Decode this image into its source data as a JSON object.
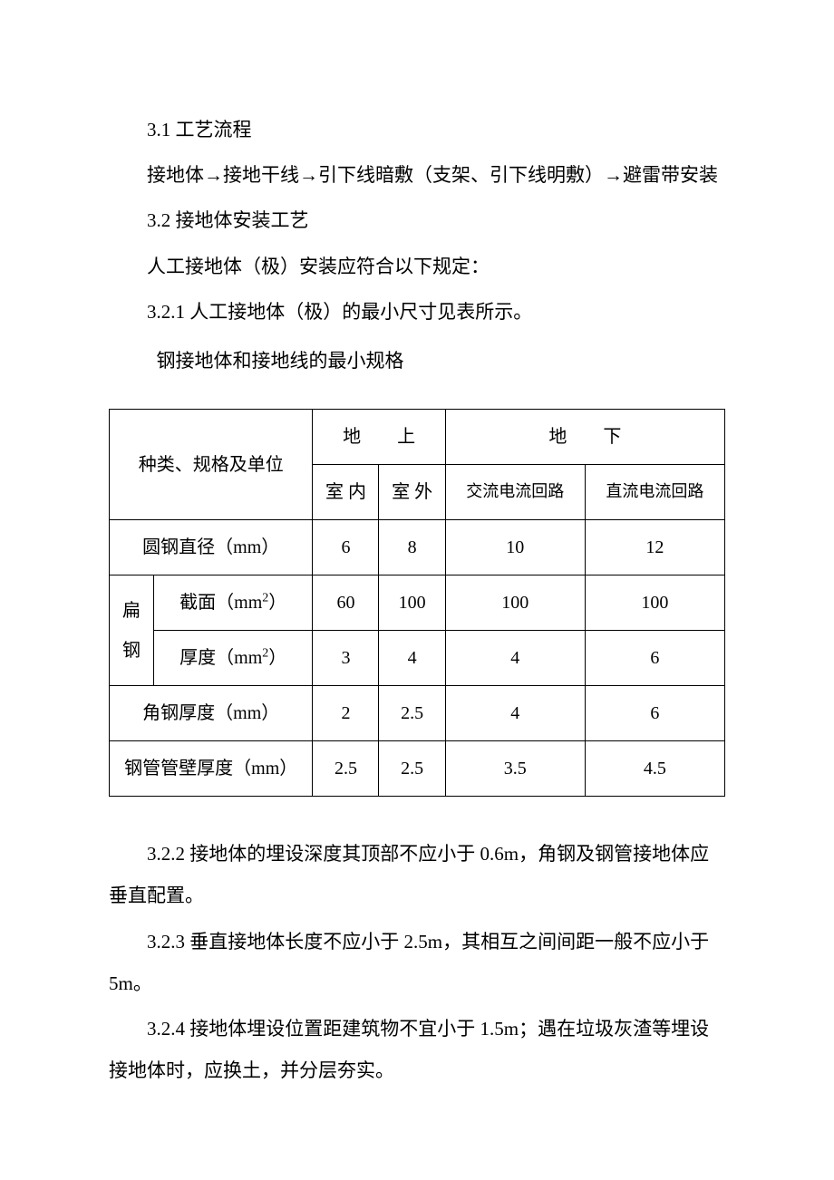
{
  "p1": "3.1 工艺流程",
  "p2": "接地体→接地干线→引下线暗敷（支架、引下线明敷）→避雷带安装",
  "p3": "3.2 接地体安装工艺",
  "p4": "人工接地体（极）安装应符合以下规定：",
  "p5": "3.2.1 人工接地体（极）的最小尺寸见表所示。",
  "p6": "钢接地体和接地线的最小规格",
  "table": {
    "header": {
      "category": "种类、规格及单位",
      "above_ground": "地　　上",
      "below_ground": "地　　下",
      "indoor": "室 内",
      "outdoor": "室 外",
      "ac_loop": "交流电流回路",
      "dc_loop": "直流电流回路"
    },
    "rows": {
      "r1": {
        "label": "圆钢直径（mm）",
        "v1": "6",
        "v2": "8",
        "v3": "10",
        "v4": "12"
      },
      "r2_group": "扁钢",
      "r2a": {
        "label_html": "截面（mm<sup>2</sup>）",
        "v1": "60",
        "v2": "100",
        "v3": "100",
        "v4": "100"
      },
      "r2b": {
        "label_html": "厚度（mm<sup>2</sup>）",
        "v1": "3",
        "v2": "4",
        "v3": "4",
        "v4": "6"
      },
      "r3": {
        "label": "角钢厚度（mm）",
        "v1": "2",
        "v2": "2.5",
        "v3": "4",
        "v4": "6"
      },
      "r4": {
        "label": "钢管管壁厚度（mm）",
        "v1": "2.5",
        "v2": "2.5",
        "v3": "3.5",
        "v4": "4.5"
      }
    }
  },
  "p7": "3.2.2 接地体的埋设深度其顶部不应小于 0.6m，角钢及钢管接地体应垂直配置。",
  "p8": "3.2.3 垂直接地体长度不应小于 2.5m，其相互之间间距一般不应小于 5m。",
  "p9": "3.2.4 接地体埋设位置距建筑物不宜小于 1.5m；遇在垃圾灰渣等埋设接地体时，应换土，并分层夯实。"
}
